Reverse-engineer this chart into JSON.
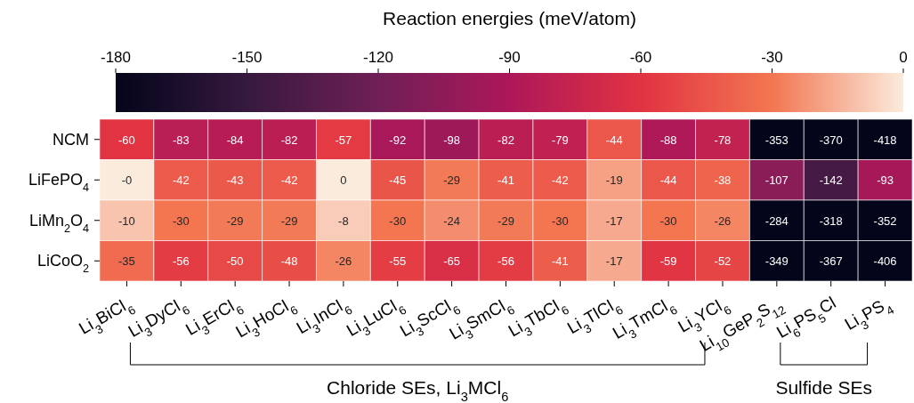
{
  "chart_data": {
    "type": "heatmap",
    "clabel": "Reaction energies (meV/atom)",
    "categories": [
      "Li$_{3}$BiCl$_{6}$",
      "Li$_{3}$DyCl$_{6}$",
      "Li$_{3}$ErCl$_{6}$",
      "Li$_{3}$HoCl$_{6}$",
      "Li$_{3}$InCl$_{6}$",
      "Li$_{3}$LuCl$_{6}$",
      "Li$_{3}$ScCl$_{6}$",
      "Li$_{3}$SmCl$_{6}$",
      "Li$_{3}$TbCl$_{6}$",
      "Li$_{3}$TlCl$_{6}$",
      "Li$_{3}$TmCl$_{6}$",
      "Li$_{3}$YCl$_{6}$",
      "Li$_{10}$GeP$_{2}$S$_{12}$",
      "Li$_{6}$PS$_{5}$Cl",
      "Li$_{3}$PS$_{4}$"
    ],
    "y_categories": [
      "NCM",
      "LiFePO$_{4}$",
      "LiMn$_{2}$O$_{4}$",
      "LiCoO$_{2}$"
    ],
    "cells": [
      [
        -60,
        -83,
        -84,
        -82,
        -57,
        -92,
        -98,
        -82,
        -79,
        -44,
        -88,
        -78,
        -353,
        -370,
        -418
      ],
      [
        0,
        -42,
        -43,
        -42,
        0,
        -45,
        -29,
        -41,
        -42,
        -19,
        -44,
        -38,
        -107,
        -142,
        -93
      ],
      [
        -10,
        -30,
        -29,
        -29,
        -8,
        -30,
        -24,
        -29,
        -30,
        -17,
        -30,
        -26,
        -284,
        -318,
        -352
      ],
      [
        -35,
        -56,
        -50,
        -48,
        -26,
        -55,
        -65,
        -56,
        -41,
        -17,
        -59,
        -52,
        -349,
        -367,
        -406
      ]
    ],
    "cell_labels": [
      [
        "-60",
        "-83",
        "-84",
        "-82",
        "-57",
        "-92",
        "-98",
        "-82",
        "-79",
        "-44",
        "-88",
        "-78",
        "-353",
        "-370",
        "-418"
      ],
      [
        "-0",
        "-42",
        "-43",
        "-42",
        "0",
        "-45",
        "-29",
        "-41",
        "-42",
        "-19",
        "-44",
        "-38",
        "-107",
        "-142",
        "-93"
      ],
      [
        "-10",
        "-30",
        "-29",
        "-29",
        "-8",
        "-30",
        "-24",
        "-29",
        "-30",
        "-17",
        "-30",
        "-26",
        "-284",
        "-318",
        "-352"
      ],
      [
        "-35",
        "-56",
        "-50",
        "-48",
        "-26",
        "-55",
        "-65",
        "-56",
        "-41",
        "-17",
        "-59",
        "-52",
        "-349",
        "-367",
        "-406"
      ]
    ],
    "clim": [
      -180,
      0
    ],
    "cticks": [
      -180,
      -150,
      -120,
      -90,
      -60,
      -30,
      0
    ],
    "annotations": [
      "Chloride SEs, Li$_{3}$MCl$_{6}$",
      "Sulfide SEs"
    ]
  }
}
